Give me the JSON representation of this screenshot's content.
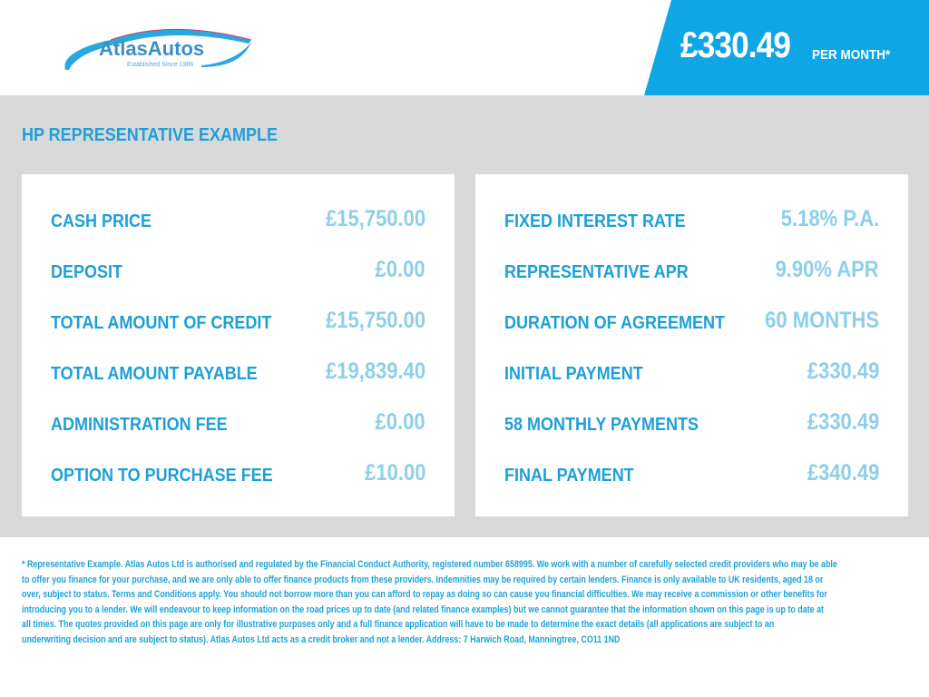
{
  "header": {
    "logo_text": "AtlasAutos",
    "logo_tagline": "Established Since 1986",
    "monthly_price": "£330.49",
    "per_month_label": "PER MONTH*"
  },
  "colors": {
    "brand_blue": "#0fa6e5",
    "label_blue": "#1e9fd8",
    "value_blue": "#8dcfea",
    "panel_grey": "#d9d9d9"
  },
  "section_title": "HP REPRESENTATIVE EXAMPLE",
  "left_card": [
    {
      "label": "CASH PRICE",
      "value": "£15,750.00"
    },
    {
      "label": "DEPOSIT",
      "value": "£0.00"
    },
    {
      "label": "TOTAL AMOUNT OF CREDIT",
      "value": "£15,750.00"
    },
    {
      "label": "TOTAL AMOUNT PAYABLE",
      "value": "£19,839.40"
    },
    {
      "label": "ADMINISTRATION FEE",
      "value": "£0.00"
    },
    {
      "label": "OPTION TO PURCHASE FEE",
      "value": "£10.00"
    }
  ],
  "right_card": [
    {
      "label": "FIXED INTEREST RATE",
      "value": "5.18% P.A."
    },
    {
      "label": "REPRESENTATIVE APR",
      "value": "9.90% APR"
    },
    {
      "label": "DURATION OF AGREEMENT",
      "value": "60 MONTHS"
    },
    {
      "label": "INITIAL PAYMENT",
      "value": "£330.49"
    },
    {
      "label": "58 MONTHLY PAYMENTS",
      "value": "£330.49"
    },
    {
      "label": "FINAL PAYMENT",
      "value": "£340.49"
    }
  ],
  "footer_lines": [
    "* Representative Example. Atlas Autos Ltd is authorised and regulated by the Financial Conduct Authority, registered number 658995. We work with a number of carefully selected credit providers who may be able",
    "to offer you finance for your purchase, and we are only able to offer finance products from these providers. Indemnities may be required by certain lenders. Finance is only available to UK residents, aged 18 or",
    "over, subject to status. Terms and Conditions apply. You should not borrow more than you can afford to repay as doing so can cause you financial difficulties. We may receive a commission or other benefits for",
    "introducing you to a lender. We will endeavour to keep information on the road prices up to date (and related finance examples) but we cannot guarantee that the information shown on this page is up to date at",
    "all times. The quotes provided on this page are only for illustrative purposes only and a full finance application will have to be made to determine the exact details (all applications are subject to an",
    "underwriting decision and are subject to status). Atlas Autos Ltd acts as a credit broker and not a lender. Address: 7 Harwich Road, Manningtree, CO11 1ND"
  ]
}
